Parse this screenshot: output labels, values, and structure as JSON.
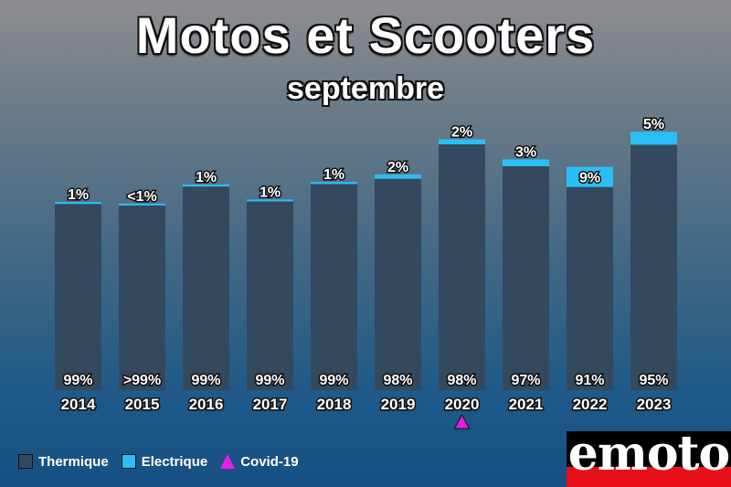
{
  "title": "Motos et Scooters",
  "subtitle": "septembre",
  "colors": {
    "thermique": "#34495e",
    "electrique": "#29bff5",
    "covid": "#e81ee8"
  },
  "chart_data": {
    "type": "bar",
    "stacked": true,
    "categories": [
      "2014",
      "2015",
      "2016",
      "2017",
      "2018",
      "2019",
      "2020",
      "2021",
      "2022",
      "2023"
    ],
    "series": [
      {
        "name": "Thermique",
        "values": [
          99,
          99.5,
          99,
          99,
          99,
          98,
          98,
          97,
          91,
          95
        ],
        "labels": [
          "99%",
          ">99%",
          "99%",
          "99%",
          "99%",
          "98%",
          "98%",
          "97%",
          "91%",
          "95%"
        ]
      },
      {
        "name": "Electrique",
        "values": [
          1,
          0.5,
          1,
          1,
          1,
          2,
          2,
          3,
          9,
          5
        ],
        "labels": [
          "1%",
          "<1%",
          "1%",
          "1%",
          "1%",
          "2%",
          "2%",
          "3%",
          "9%",
          "5%"
        ]
      }
    ],
    "relative_totals": [
      0.6818,
      0.6727,
      0.7455,
      0.6909,
      0.7545,
      0.7818,
      0.9091,
      0.8364,
      0.8091,
      0.9364
    ],
    "markers": [
      {
        "category": "2020",
        "name": "Covid-19",
        "shape": "triangle"
      }
    ],
    "legend": [
      {
        "label": "Thermique",
        "type": "square",
        "color": "#34495e"
      },
      {
        "label": "Electrique",
        "type": "square",
        "color": "#29bff5"
      },
      {
        "label": "Covid-19",
        "type": "triangle",
        "color": "#e81ee8"
      }
    ],
    "grid": false,
    "legend_position": "bottom-left"
  },
  "logo": {
    "text": "emoto"
  }
}
